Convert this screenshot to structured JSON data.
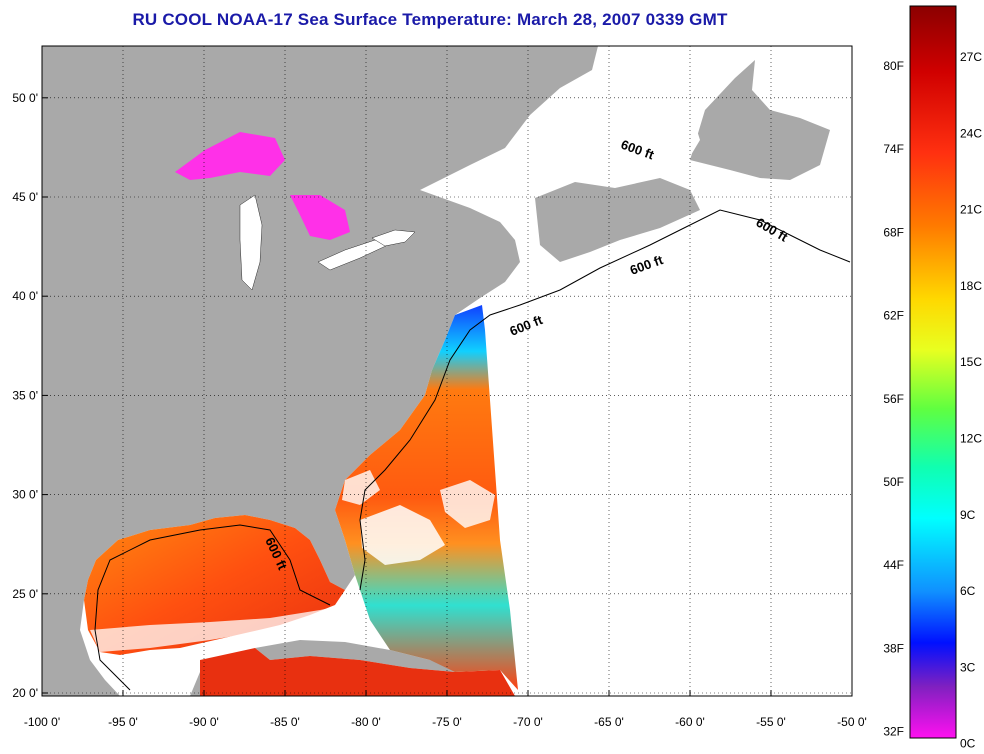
{
  "title": "RU COOL  NOAA-17  Sea Surface Temperature:  March 28, 2007 0339 GMT",
  "map": {
    "lon_ticks": [
      "-100 0'",
      "-95 0'",
      "-90 0'",
      "-85 0'",
      "-80 0'",
      "-75 0'",
      "-70 0'",
      "-65 0'",
      "-60 0'",
      "-55 0'",
      "-50 0'"
    ],
    "lat_ticks": [
      "20 0'",
      "25 0'",
      "30 0'",
      "35 0'",
      "40 0'",
      "45 0'",
      "50 0'"
    ],
    "isobath_label": "600 ft",
    "land_color": "#a9a9a9",
    "nodata_color": "#ffffff"
  },
  "colorbar": {
    "fahrenheit_labels": [
      "80F",
      "74F",
      "68F",
      "62F",
      "56F",
      "50F",
      "44F",
      "38F",
      "32F"
    ],
    "celsius_labels": [
      "27C",
      "24C",
      "21C",
      "18C",
      "15C",
      "12C",
      "9C",
      "6C",
      "3C",
      "0C"
    ],
    "colors": [
      "#8b0000",
      "#e01010",
      "#ff6000",
      "#ffd000",
      "#e8ff20",
      "#30ff70",
      "#00ffff",
      "#1090ff",
      "#0010ff",
      "#8020c0",
      "#ff00ff"
    ]
  }
}
